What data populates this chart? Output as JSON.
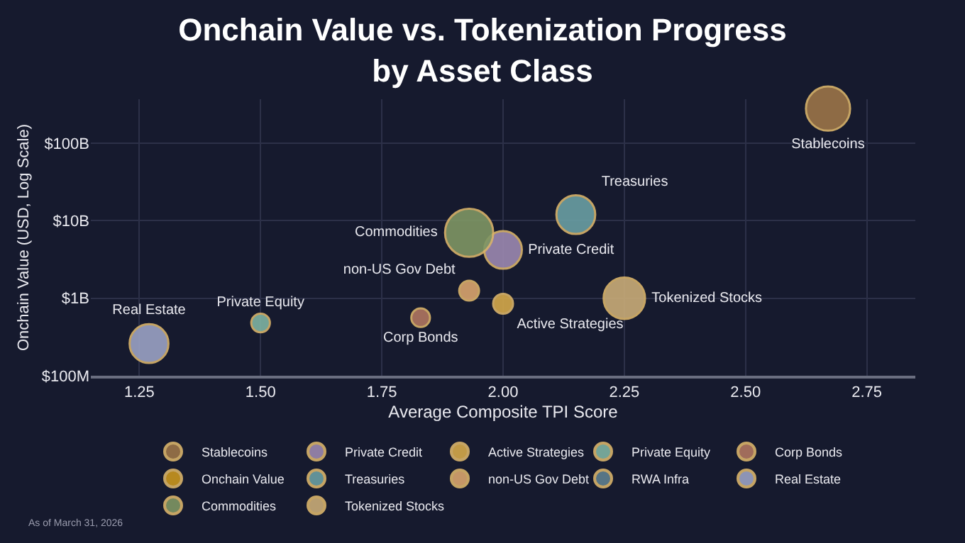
{
  "chart_data": {
    "type": "bubble",
    "title": "Onchain Value vs. Tokenization Progress\nby Asset Class",
    "xlabel": "Average Composite TPI Score",
    "ylabel": "Onchain Value (USD, Log Scale)",
    "series": [
      {
        "name": "Stablecoins",
        "color": "#9b7448",
        "x": [
          2.67
        ],
        "values": [
          280000000000.0
        ],
        "sizes": [
          0.84
        ]
      },
      {
        "name": "Private Credit",
        "color": "#9b88b0",
        "x": [
          2.0
        ],
        "values": [
          4200000000.0
        ],
        "sizes": [
          0.61
        ]
      },
      {
        "name": "Active Strategies",
        "color": "#d4a84a",
        "x": [
          2.0
        ],
        "values": [
          850000000.0
        ],
        "sizes": [
          0.17
        ]
      },
      {
        "name": "Private Equity",
        "color": "#7fb3a3",
        "x": [
          1.5
        ],
        "values": [
          480000000.0
        ],
        "sizes": [
          0.15
        ]
      },
      {
        "name": "Corp Bonds",
        "color": "#b07560",
        "x": [
          1.83
        ],
        "values": [
          560000000.0
        ],
        "sizes": [
          0.15
        ]
      },
      {
        "name": "Onchain Value",
        "color": "#c9961e"
      },
      {
        "name": "Treasuries",
        "color": "#6a9ea3",
        "x": [
          2.15
        ],
        "values": [
          12000000000.0
        ],
        "sizes": [
          0.65
        ]
      },
      {
        "name": "non-US Gov Debt",
        "color": "#d9a46e",
        "x": [
          1.93
        ],
        "values": [
          1250000000.0
        ],
        "sizes": [
          0.17
        ]
      },
      {
        "name": "RWA Infra",
        "color": "#5f7f8f"
      },
      {
        "name": "Real Estate",
        "color": "#9aa2c4",
        "x": [
          1.27
        ],
        "values": [
          260000000.0
        ],
        "sizes": [
          0.65
        ]
      },
      {
        "name": "Commodities",
        "color": "#7f9664",
        "x": [
          1.93
        ],
        "values": [
          7000000000.0
        ],
        "sizes": [
          1
        ]
      },
      {
        "name": "Tokenized Stocks",
        "color": "#c9ac78",
        "x": [
          2.25
        ],
        "values": [
          1000000000.0
        ],
        "sizes": [
          0.74
        ]
      }
    ],
    "xlim": [
      1.15,
      2.85
    ],
    "xticks": [
      {
        "value": 1.25,
        "label": "1.25"
      },
      {
        "value": 1.5,
        "label": "1.50"
      },
      {
        "value": 1.75,
        "label": "1.75"
      },
      {
        "value": 2.0,
        "label": "2.00"
      },
      {
        "value": 2.25,
        "label": "2.25"
      },
      {
        "value": 2.5,
        "label": "2.50"
      },
      {
        "value": 2.75,
        "label": "2.75"
      }
    ],
    "ylim": [
      100000000.0,
      370000000000.0
    ],
    "yticks": [
      {
        "value": 100000000.0,
        "label": "$100M"
      },
      {
        "value": 1000000000.0,
        "label": "$1B"
      },
      {
        "value": 10000000000.0,
        "label": "$10B"
      },
      {
        "value": 100000000000.0,
        "label": "$100B"
      }
    ],
    "log": "y",
    "grid": true,
    "legend": "bottom",
    "annotations": [
      "As of March 31, 2026"
    ]
  }
}
